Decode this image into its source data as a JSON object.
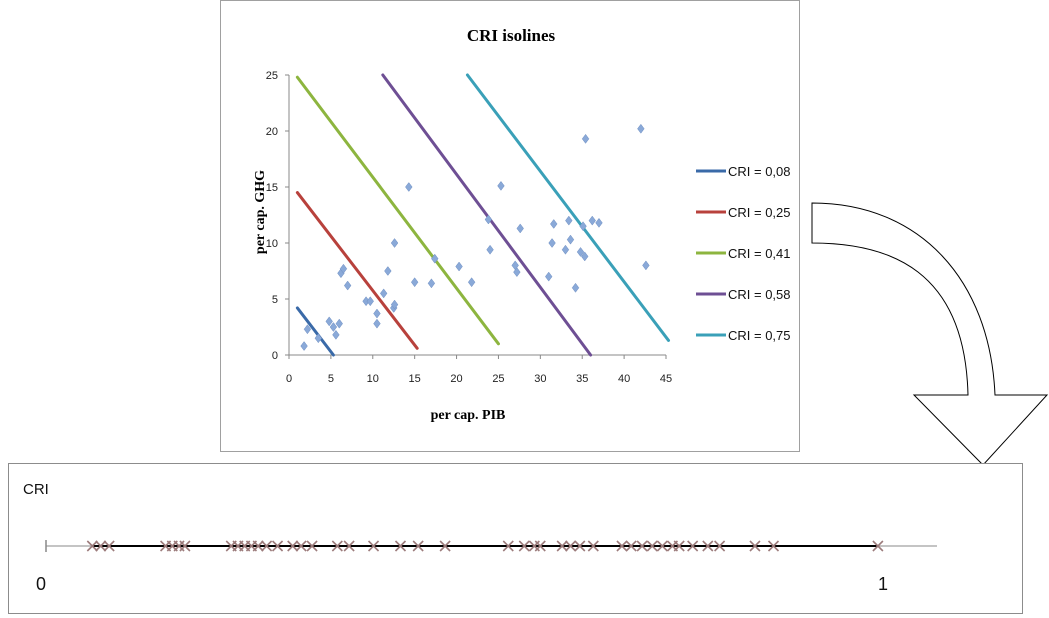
{
  "chart_data": [
    {
      "type": "scatter",
      "title": "CRI isolines",
      "xlabel": "per cap. PIB",
      "ylabel": "per cap. GHG",
      "xlim": [
        0,
        45
      ],
      "ylim": [
        0,
        25
      ],
      "x_ticks": [
        "0",
        "5",
        "10",
        "15",
        "20",
        "25",
        "30",
        "35",
        "40",
        "45"
      ],
      "y_ticks": [
        "0",
        "5",
        "10",
        "15",
        "20",
        "25"
      ],
      "grid": false,
      "legend": "right",
      "isolines": [
        {
          "name": "CRI = 0,08",
          "color": "#3a6aa8",
          "points": [
            [
              1,
              4.2
            ],
            [
              5.3,
              0
            ]
          ]
        },
        {
          "name": "CRI = 0,25",
          "color": "#b8413c",
          "points": [
            [
              1,
              14.5
            ],
            [
              15.3,
              0.6
            ]
          ]
        },
        {
          "name": "CRI = 0,41",
          "color": "#8db53f",
          "points": [
            [
              1,
              24.8
            ],
            [
              25,
              1
            ]
          ]
        },
        {
          "name": "CRI = 0,58",
          "color": "#6e4f94",
          "points": [
            [
              11.2,
              25
            ],
            [
              36,
              0
            ]
          ]
        },
        {
          "name": "CRI = 0,75",
          "color": "#3aa0b8",
          "points": [
            [
              21.3,
              25
            ],
            [
              45.3,
              1.3
            ]
          ]
        }
      ],
      "points_color": "#8aa9d8",
      "points": [
        [
          1.8,
          0.8
        ],
        [
          2.2,
          2.3
        ],
        [
          3.5,
          1.5
        ],
        [
          4.8,
          3.0
        ],
        [
          5.3,
          2.5
        ],
        [
          5.6,
          1.8
        ],
        [
          6.0,
          2.8
        ],
        [
          6.2,
          7.3
        ],
        [
          6.5,
          7.7
        ],
        [
          7.0,
          6.2
        ],
        [
          9.2,
          4.8
        ],
        [
          9.7,
          4.8
        ],
        [
          10.5,
          3.7
        ],
        [
          10.5,
          2.8
        ],
        [
          11.3,
          5.5
        ],
        [
          11.8,
          7.5
        ],
        [
          12.5,
          4.2
        ],
        [
          12.6,
          4.5
        ],
        [
          12.6,
          10.0
        ],
        [
          14.3,
          15.0
        ],
        [
          15.0,
          6.5
        ],
        [
          17.0,
          6.4
        ],
        [
          17.4,
          8.6
        ],
        [
          20.3,
          7.9
        ],
        [
          21.8,
          6.5
        ],
        [
          23.8,
          12.1
        ],
        [
          24.0,
          9.4
        ],
        [
          25.3,
          15.1
        ],
        [
          27.0,
          8.0
        ],
        [
          27.2,
          7.4
        ],
        [
          27.6,
          11.3
        ],
        [
          31.0,
          7.0
        ],
        [
          31.4,
          10.0
        ],
        [
          31.6,
          11.7
        ],
        [
          33.0,
          9.4
        ],
        [
          33.4,
          12.0
        ],
        [
          33.6,
          10.3
        ],
        [
          34.2,
          6.0
        ],
        [
          34.8,
          9.2
        ],
        [
          35.1,
          11.5
        ],
        [
          35.3,
          8.8
        ],
        [
          35.4,
          19.3
        ],
        [
          36.2,
          12.0
        ],
        [
          37.0,
          11.8
        ],
        [
          42.0,
          20.2
        ],
        [
          42.6,
          8.0
        ]
      ]
    },
    {
      "type": "scatter",
      "title": "CRI",
      "xlim": [
        0,
        1
      ],
      "x_ticks": [
        "0",
        "1"
      ],
      "marker": "x",
      "marker_color": "#9c7b7b",
      "values": [
        0.055,
        0.065,
        0.075,
        0.142,
        0.15,
        0.158,
        0.165,
        0.22,
        0.228,
        0.236,
        0.244,
        0.252,
        0.262,
        0.275,
        0.293,
        0.303,
        0.316,
        0.346,
        0.36,
        0.389,
        0.421,
        0.442,
        0.474,
        0.549,
        0.568,
        0.58,
        0.587,
        0.613,
        0.623,
        0.634,
        0.65,
        0.684,
        0.695,
        0.708,
        0.72,
        0.732,
        0.744,
        0.752,
        0.768,
        0.786,
        0.8,
        0.842,
        0.864,
        0.988
      ]
    }
  ]
}
